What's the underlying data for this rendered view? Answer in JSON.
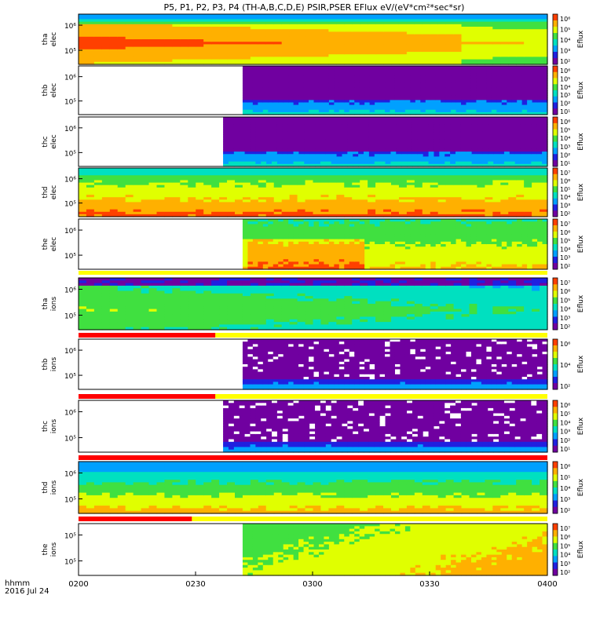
{
  "title": "P5, P1, P2, P3, P4 (TH-A,B,C,D,E) PSIR,PSER EFlux eV/(eV*cm²*sec*sr)",
  "time_axis": {
    "ticks": [
      "0200",
      "0230",
      "0300",
      "0330",
      "0400"
    ],
    "corner_label": "hhmm",
    "date_label": "2016 Jul 24"
  },
  "colorbar_unit": "Eflux",
  "chart_data": {
    "type": "heatmap",
    "x_start": "02:00",
    "x_end": "04:00",
    "colormap": [
      "#ffffff",
      "#7000a0",
      "#2020e0",
      "#00a0ff",
      "#00e0c0",
      "#40e040",
      "#e0ff00",
      "#ffb000",
      "#ff4000",
      "#c00000"
    ],
    "panels": [
      {
        "label_top": "tha",
        "label_bottom": "elec",
        "y_ticks": [
          "10⁶",
          "10⁵"
        ],
        "cbar_ticks": [
          "10⁶",
          "10⁵",
          "10⁴",
          "10³",
          "10²"
        ],
        "data_start": "02:00",
        "style": "tha_elec",
        "flag": "none"
      },
      {
        "label_top": "thb",
        "label_bottom": "elec",
        "y_ticks": [
          "10⁶",
          "10⁵"
        ],
        "cbar_ticks": [
          "10⁶",
          "10⁵",
          "10⁴",
          "10³",
          "10²",
          "10¹"
        ],
        "data_start": "02:42",
        "style": "sparse_elec",
        "flag": "none"
      },
      {
        "label_top": "thc",
        "label_bottom": "elec",
        "y_ticks": [
          "10⁶",
          "10⁵"
        ],
        "cbar_ticks": [
          "10⁶",
          "10⁵",
          "10⁴",
          "10³",
          "10²",
          "10¹"
        ],
        "data_start": "02:37",
        "style": "sparse_elec",
        "flag": "none"
      },
      {
        "label_top": "thd",
        "label_bottom": "elec",
        "y_ticks": [
          "10⁶",
          "10⁵"
        ],
        "cbar_ticks": [
          "10⁷",
          "10⁶",
          "10⁵",
          "10⁴",
          "10³",
          "10²"
        ],
        "data_start": "02:00",
        "style": "thd_elec",
        "flag": "none"
      },
      {
        "label_top": "the",
        "label_bottom": "elec",
        "y_ticks": [
          "10⁶",
          "10⁵"
        ],
        "cbar_ticks": [
          "10⁷",
          "10⁶",
          "10⁵",
          "10⁴",
          "10³",
          "10²"
        ],
        "data_start": "02:42",
        "style": "the_elec",
        "flag": "yellow"
      },
      {
        "label_top": "tha",
        "label_bottom": "ions",
        "y_ticks": [
          "10⁶",
          "10⁵"
        ],
        "cbar_ticks": [
          "10⁷",
          "10⁶",
          "10⁵",
          "10⁴",
          "10³",
          "10²"
        ],
        "data_start": "02:00",
        "style": "tha_ions",
        "flag": "red_to_0235"
      },
      {
        "label_top": "thb",
        "label_bottom": "ions",
        "y_ticks": [
          "10⁶",
          "10⁵"
        ],
        "cbar_ticks": [
          "10⁶",
          "10⁴",
          "10²"
        ],
        "data_start": "02:42",
        "style": "sparse_ions",
        "flag": "red_to_0235"
      },
      {
        "label_top": "thc",
        "label_bottom": "ions",
        "y_ticks": [
          "10⁶",
          "10⁵"
        ],
        "cbar_ticks": [
          "10⁶",
          "10⁵",
          "10⁴",
          "10³",
          "10²",
          "10¹"
        ],
        "data_start": "02:37",
        "style": "sparse_ions",
        "flag": "red_full"
      },
      {
        "label_top": "thd",
        "label_bottom": "ions",
        "y_ticks": [
          "10⁶",
          "10⁵"
        ],
        "cbar_ticks": [
          "10⁶",
          "10⁵",
          "10⁴",
          "10³",
          "10²"
        ],
        "data_start": "02:00",
        "style": "thd_ions",
        "flag": "red_to_0230"
      },
      {
        "label_top": "the",
        "label_bottom": "ions",
        "y_ticks": [
          "10⁵",
          "10⁵"
        ],
        "cbar_ticks": [
          "10⁷",
          "10⁶",
          "10⁵",
          "10⁴",
          "10³",
          "10²"
        ],
        "data_start": "02:42",
        "style": "the_ions",
        "flag": "none"
      }
    ]
  }
}
